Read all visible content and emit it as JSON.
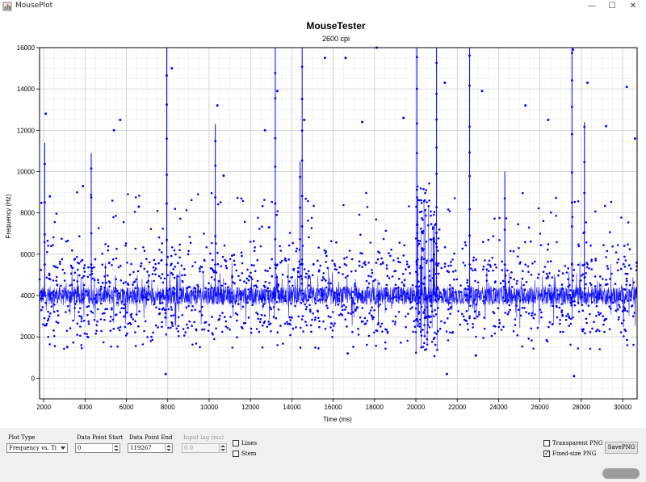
{
  "window": {
    "title": "MousePlot",
    "minimize_glyph": "—",
    "maximize_glyph": "☐",
    "close_glyph": "✕"
  },
  "chart_data": {
    "type": "scatter",
    "title": "MouseTester",
    "subtitle": "2600 cpi",
    "xlabel": "Time (ms)",
    "ylabel": "Frequency (Hz)",
    "xlim": [
      1800,
      30700
    ],
    "ylim": [
      -1000,
      16000
    ],
    "xticks": [
      2000,
      4000,
      6000,
      8000,
      10000,
      12000,
      14000,
      16000,
      18000,
      20000,
      22000,
      24000,
      26000,
      28000,
      30000
    ],
    "yticks": [
      0,
      2000,
      4000,
      6000,
      8000,
      10000,
      12000,
      14000,
      16000
    ],
    "grid": true,
    "series_color": "#0000ff",
    "baseline_hz": 4000,
    "spikes": [
      {
        "x": 2050,
        "y": 11400
      },
      {
        "x": 4300,
        "y": 10900
      },
      {
        "x": 7950,
        "y": 16000
      },
      {
        "x": 10300,
        "y": 12300
      },
      {
        "x": 13200,
        "y": 16000
      },
      {
        "x": 14400,
        "y": 10500
      },
      {
        "x": 14500,
        "y": 16000
      },
      {
        "x": 20050,
        "y": 16000
      },
      {
        "x": 21000,
        "y": 16000
      },
      {
        "x": 22600,
        "y": 16000
      },
      {
        "x": 24300,
        "y": 10000
      },
      {
        "x": 27550,
        "y": 16000
      },
      {
        "x": 28150,
        "y": 12400
      }
    ],
    "outliers": [
      {
        "x": 2100,
        "y": 12800
      },
      {
        "x": 2300,
        "y": 8800
      },
      {
        "x": 3900,
        "y": 9300
      },
      {
        "x": 5400,
        "y": 12000
      },
      {
        "x": 5700,
        "y": 12500
      },
      {
        "x": 6600,
        "y": 8300
      },
      {
        "x": 7900,
        "y": 200
      },
      {
        "x": 8200,
        "y": 15000
      },
      {
        "x": 10400,
        "y": 13200
      },
      {
        "x": 10700,
        "y": 9800
      },
      {
        "x": 12700,
        "y": 12000
      },
      {
        "x": 12900,
        "y": 7300
      },
      {
        "x": 13300,
        "y": 13900
      },
      {
        "x": 14600,
        "y": 12500
      },
      {
        "x": 15600,
        "y": 15500
      },
      {
        "x": 16600,
        "y": 15500
      },
      {
        "x": 17400,
        "y": 12400
      },
      {
        "x": 18100,
        "y": 16000
      },
      {
        "x": 19400,
        "y": 12600
      },
      {
        "x": 21400,
        "y": 14300
      },
      {
        "x": 23200,
        "y": 13900
      },
      {
        "x": 25300,
        "y": 13200
      },
      {
        "x": 26400,
        "y": 12500
      },
      {
        "x": 27600,
        "y": 15900
      },
      {
        "x": 27650,
        "y": 100
      },
      {
        "x": 28300,
        "y": 14300
      },
      {
        "x": 29200,
        "y": 12200
      },
      {
        "x": 30200,
        "y": 14100
      },
      {
        "x": 30600,
        "y": 11600
      },
      {
        "x": 16700,
        "y": 1200
      },
      {
        "x": 21500,
        "y": 200
      },
      {
        "x": 22900,
        "y": 1100
      }
    ]
  },
  "controls": {
    "plot_type": {
      "label": "Plot Type",
      "value": "Frequency vs. Ti"
    },
    "data_point_start": {
      "label": "Data Point Start",
      "value": "0"
    },
    "data_point_end": {
      "label": "Data Point End",
      "value": "119267"
    },
    "input_lag": {
      "label": "Input lag (ms)",
      "value": "0.0"
    },
    "lines": {
      "label": "Lines",
      "checked": false
    },
    "stem": {
      "label": "Stem",
      "checked": false
    },
    "transparent_png": {
      "label": "Transparent PNG",
      "checked": false
    },
    "fixed_size_png": {
      "label": "Fixed-size PNG",
      "checked": true,
      "check_glyph": "✓"
    },
    "save_button": {
      "label": "SavePNG"
    }
  }
}
